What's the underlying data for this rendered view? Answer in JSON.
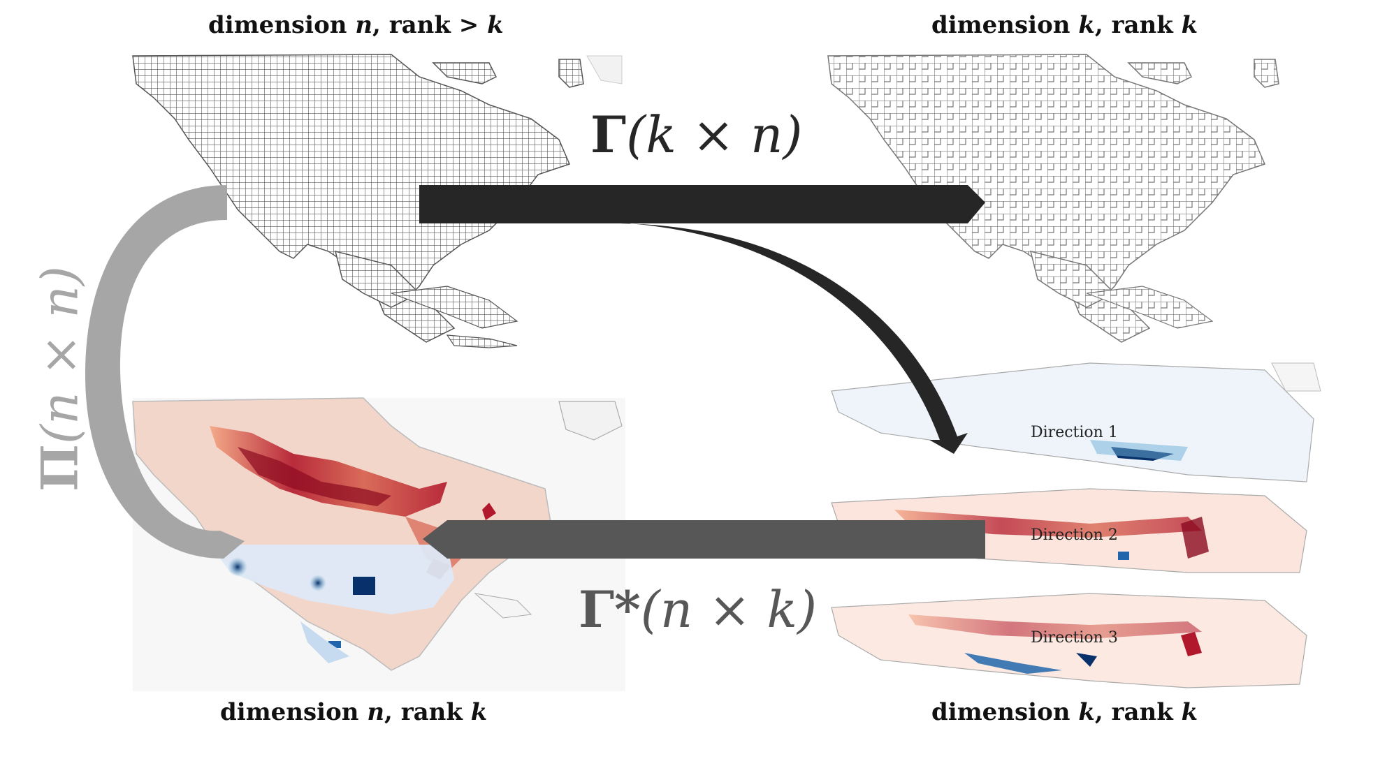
{
  "labels": {
    "top_left": {
      "prefix": "dimension ",
      "var1": "n",
      "sep": ", rank > ",
      "var2": "k"
    },
    "top_right": {
      "prefix": "dimension ",
      "var1": "k",
      "sep": ", rank ",
      "var2": "k"
    },
    "bottom_left": {
      "prefix": "dimension ",
      "var1": "n",
      "sep": ", rank ",
      "var2": "k"
    },
    "bottom_right": {
      "prefix": "dimension ",
      "var1": "k",
      "sep": ", rank ",
      "var2": "k"
    }
  },
  "operators": {
    "gamma": {
      "symbol": "Γ",
      "args": "(k × n)"
    },
    "gamma_star": {
      "symbol": "Γ*",
      "args": "(n × k)"
    },
    "pi": {
      "symbol": "Π",
      "args": "(n × n)"
    }
  },
  "directions": [
    "Direction 1",
    "Direction 2",
    "Direction 3"
  ],
  "colors": {
    "gamma_arrow": "#262626",
    "gamma_star_arrow": "#575757",
    "pi_arrow": "#a6a6a6",
    "grid": "#5a5a5a",
    "positive": "#b2182b",
    "negative": "#2166ac"
  },
  "icons": [
    "north-america-grid-map",
    "north-america-coarse-map",
    "heatmap-map",
    "direction-maps"
  ]
}
